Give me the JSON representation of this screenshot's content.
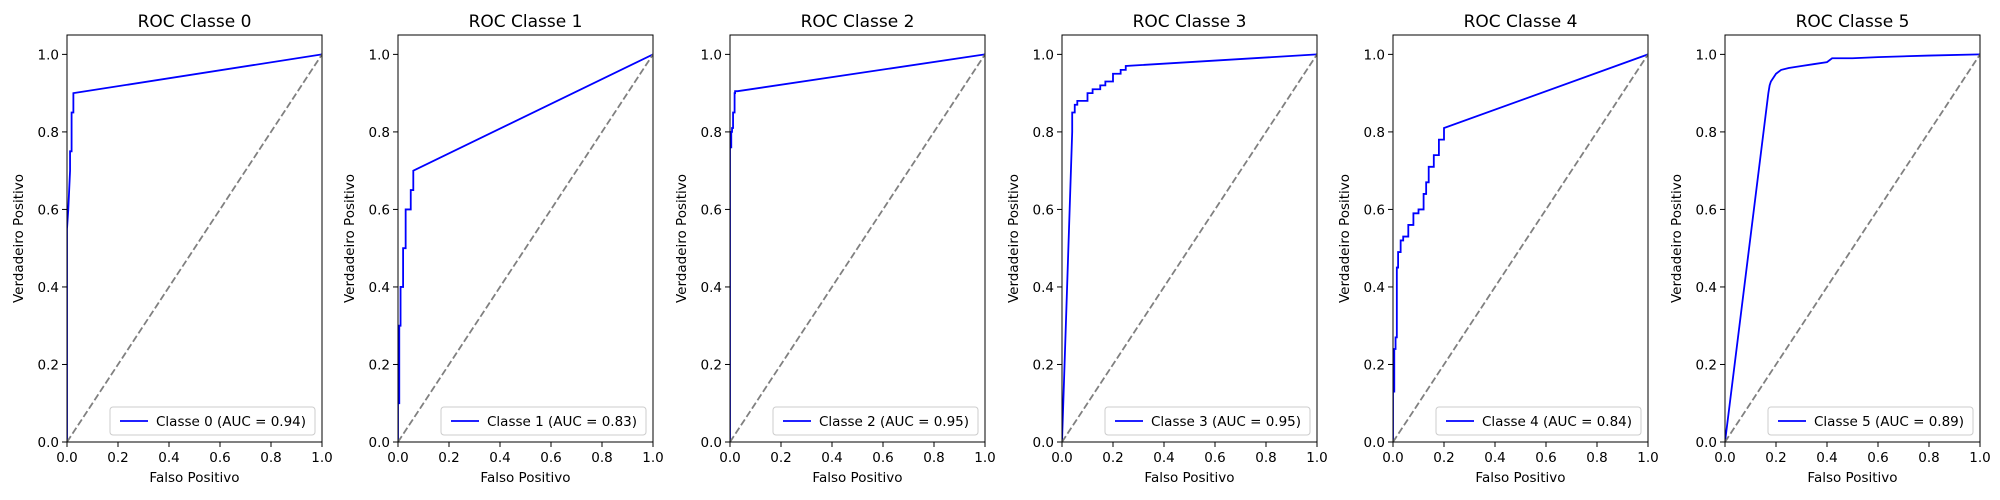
{
  "chart_data": [
    {
      "type": "line",
      "title": "ROC Classe 0",
      "xlabel": "Falso Positivo",
      "ylabel": "Verdadeiro Positivo",
      "xlim": [
        0,
        1
      ],
      "ylim": [
        0,
        1.05
      ],
      "xticks": [
        "0.0",
        "0.2",
        "0.4",
        "0.6",
        "0.8",
        "1.0"
      ],
      "yticks": [
        "0.0",
        "0.2",
        "0.4",
        "0.6",
        "0.8",
        "1.0"
      ],
      "legend_position": "lower right",
      "series": [
        {
          "name": "Classe 0 (AUC = 0.94)",
          "color": "#0000ff",
          "style": "solid",
          "x": [
            0,
            0,
            0.005,
            0.005,
            0.012,
            0.012,
            0.018,
            0.018,
            0.025,
            0.025,
            1
          ],
          "y": [
            0,
            0.55,
            0.6,
            0.6,
            0.7,
            0.75,
            0.75,
            0.85,
            0.85,
            0.9,
            1
          ]
        },
        {
          "color": "#808080",
          "style": "dashed",
          "x": [
            0,
            1
          ],
          "y": [
            0,
            1
          ]
        }
      ]
    },
    {
      "type": "line",
      "title": "ROC Classe 1",
      "xlabel": "Falso Positivo",
      "ylabel": "Verdadeiro Positivo",
      "xlim": [
        0,
        1
      ],
      "ylim": [
        0,
        1.05
      ],
      "xticks": [
        "0.0",
        "0.2",
        "0.4",
        "0.6",
        "0.8",
        "1.0"
      ],
      "yticks": [
        "0.0",
        "0.2",
        "0.4",
        "0.6",
        "0.8",
        "1.0"
      ],
      "legend_position": "lower right",
      "series": [
        {
          "name": "Classe 1 (AUC = 0.83)",
          "color": "#0000ff",
          "style": "solid",
          "x": [
            0,
            0.0,
            0.005,
            0.005,
            0.01,
            0.01,
            0.02,
            0.02,
            0.03,
            0.03,
            0.05,
            0.05,
            0.06,
            0.06,
            1
          ],
          "y": [
            0,
            0.1,
            0.1,
            0.3,
            0.3,
            0.4,
            0.4,
            0.5,
            0.5,
            0.6,
            0.6,
            0.65,
            0.65,
            0.7,
            1
          ]
        },
        {
          "color": "#808080",
          "style": "dashed",
          "x": [
            0,
            1
          ],
          "y": [
            0,
            1
          ]
        }
      ]
    },
    {
      "type": "line",
      "title": "ROC Classe 2",
      "xlabel": "Falso Positivo",
      "ylabel": "Verdadeiro Positivo",
      "xlim": [
        0,
        1
      ],
      "ylim": [
        0,
        1.05
      ],
      "xticks": [
        "0.0",
        "0.2",
        "0.4",
        "0.6",
        "0.8",
        "1.0"
      ],
      "yticks": [
        "0.0",
        "0.2",
        "0.4",
        "0.6",
        "0.8",
        "1.0"
      ],
      "legend_position": "lower right",
      "series": [
        {
          "name": "Classe 2 (AUC = 0.95)",
          "color": "#0000ff",
          "style": "solid",
          "x": [
            0,
            0.0,
            0.005,
            0.005,
            0.008,
            0.008,
            0.012,
            0.012,
            0.018,
            0.018,
            0.02,
            0.02,
            0.03,
            1
          ],
          "y": [
            0,
            0.76,
            0.76,
            0.8,
            0.8,
            0.81,
            0.81,
            0.85,
            0.85,
            0.9,
            0.9,
            0.905,
            0.905,
            1
          ]
        },
        {
          "color": "#808080",
          "style": "dashed",
          "x": [
            0,
            1
          ],
          "y": [
            0,
            1
          ]
        }
      ]
    },
    {
      "type": "line",
      "title": "ROC Classe 3",
      "xlabel": "Falso Positivo",
      "ylabel": "Verdadeiro Positivo",
      "xlim": [
        0,
        1
      ],
      "ylim": [
        0,
        1.05
      ],
      "xticks": [
        "0.0",
        "0.2",
        "0.4",
        "0.6",
        "0.8",
        "1.0"
      ],
      "yticks": [
        "0.0",
        "0.2",
        "0.4",
        "0.6",
        "0.8",
        "1.0"
      ],
      "legend_position": "lower right",
      "series": [
        {
          "name": "Classe 3 (AUC = 0.95)",
          "color": "#0000ff",
          "style": "solid",
          "x": [
            0,
            0.04,
            0.04,
            0.05,
            0.05,
            0.06,
            0.06,
            0.1,
            0.1,
            0.12,
            0.12,
            0.15,
            0.15,
            0.17,
            0.17,
            0.2,
            0.2,
            0.23,
            0.23,
            0.25,
            0.25,
            1
          ],
          "y": [
            0,
            0.8,
            0.85,
            0.85,
            0.87,
            0.87,
            0.88,
            0.88,
            0.9,
            0.9,
            0.91,
            0.91,
            0.92,
            0.92,
            0.93,
            0.93,
            0.95,
            0.95,
            0.96,
            0.96,
            0.97,
            1
          ]
        },
        {
          "color": "#808080",
          "style": "dashed",
          "x": [
            0,
            1
          ],
          "y": [
            0,
            1
          ]
        }
      ]
    },
    {
      "type": "line",
      "title": "ROC Classe 4",
      "xlabel": "Falso Positivo",
      "ylabel": "Verdadeiro Positivo",
      "xlim": [
        0,
        1
      ],
      "ylim": [
        0,
        1.05
      ],
      "xticks": [
        "0.0",
        "0.2",
        "0.4",
        "0.6",
        "0.8",
        "1.0"
      ],
      "yticks": [
        "0.0",
        "0.2",
        "0.4",
        "0.6",
        "0.8",
        "1.0"
      ],
      "legend_position": "lower right",
      "series": [
        {
          "name": "Classe 4 (AUC = 0.84)",
          "color": "#0000ff",
          "style": "solid",
          "x": [
            0,
            0,
            0.005,
            0.005,
            0.01,
            0.01,
            0.015,
            0.015,
            0.02,
            0.02,
            0.03,
            0.03,
            0.04,
            0.04,
            0.06,
            0.06,
            0.08,
            0.08,
            0.1,
            0.1,
            0.12,
            0.12,
            0.13,
            0.13,
            0.14,
            0.14,
            0.16,
            0.16,
            0.18,
            0.18,
            0.2,
            0.2,
            1
          ],
          "y": [
            0,
            0.13,
            0.13,
            0.24,
            0.24,
            0.27,
            0.27,
            0.45,
            0.45,
            0.49,
            0.49,
            0.52,
            0.52,
            0.53,
            0.53,
            0.56,
            0.56,
            0.59,
            0.59,
            0.6,
            0.6,
            0.64,
            0.64,
            0.67,
            0.67,
            0.71,
            0.71,
            0.74,
            0.74,
            0.78,
            0.78,
            0.81,
            1
          ]
        },
        {
          "color": "#808080",
          "style": "dashed",
          "x": [
            0,
            1
          ],
          "y": [
            0,
            1
          ]
        }
      ]
    },
    {
      "type": "line",
      "title": "ROC Classe 5",
      "xlabel": "Falso Positivo",
      "ylabel": "Verdadeiro Positivo",
      "xlim": [
        0,
        1
      ],
      "ylim": [
        0,
        1.05
      ],
      "xticks": [
        "0.0",
        "0.2",
        "0.4",
        "0.6",
        "0.8",
        "1.0"
      ],
      "yticks": [
        "0.0",
        "0.2",
        "0.4",
        "0.6",
        "0.8",
        "1.0"
      ],
      "legend_position": "lower right",
      "series": [
        {
          "name": "Classe 5 (AUC = 0.89)",
          "color": "#0000ff",
          "style": "solid",
          "x": [
            0,
            0.17,
            0.175,
            0.18,
            0.19,
            0.2,
            0.22,
            0.25,
            0.3,
            0.35,
            0.4,
            0.42,
            0.5,
            0.6,
            0.8,
            1
          ],
          "y": [
            0,
            0.9,
            0.92,
            0.93,
            0.94,
            0.95,
            0.96,
            0.965,
            0.97,
            0.975,
            0.98,
            0.99,
            0.99,
            0.993,
            0.997,
            1
          ]
        },
        {
          "color": "#808080",
          "style": "dashed",
          "x": [
            0,
            1
          ],
          "y": [
            0,
            1
          ]
        }
      ]
    }
  ]
}
